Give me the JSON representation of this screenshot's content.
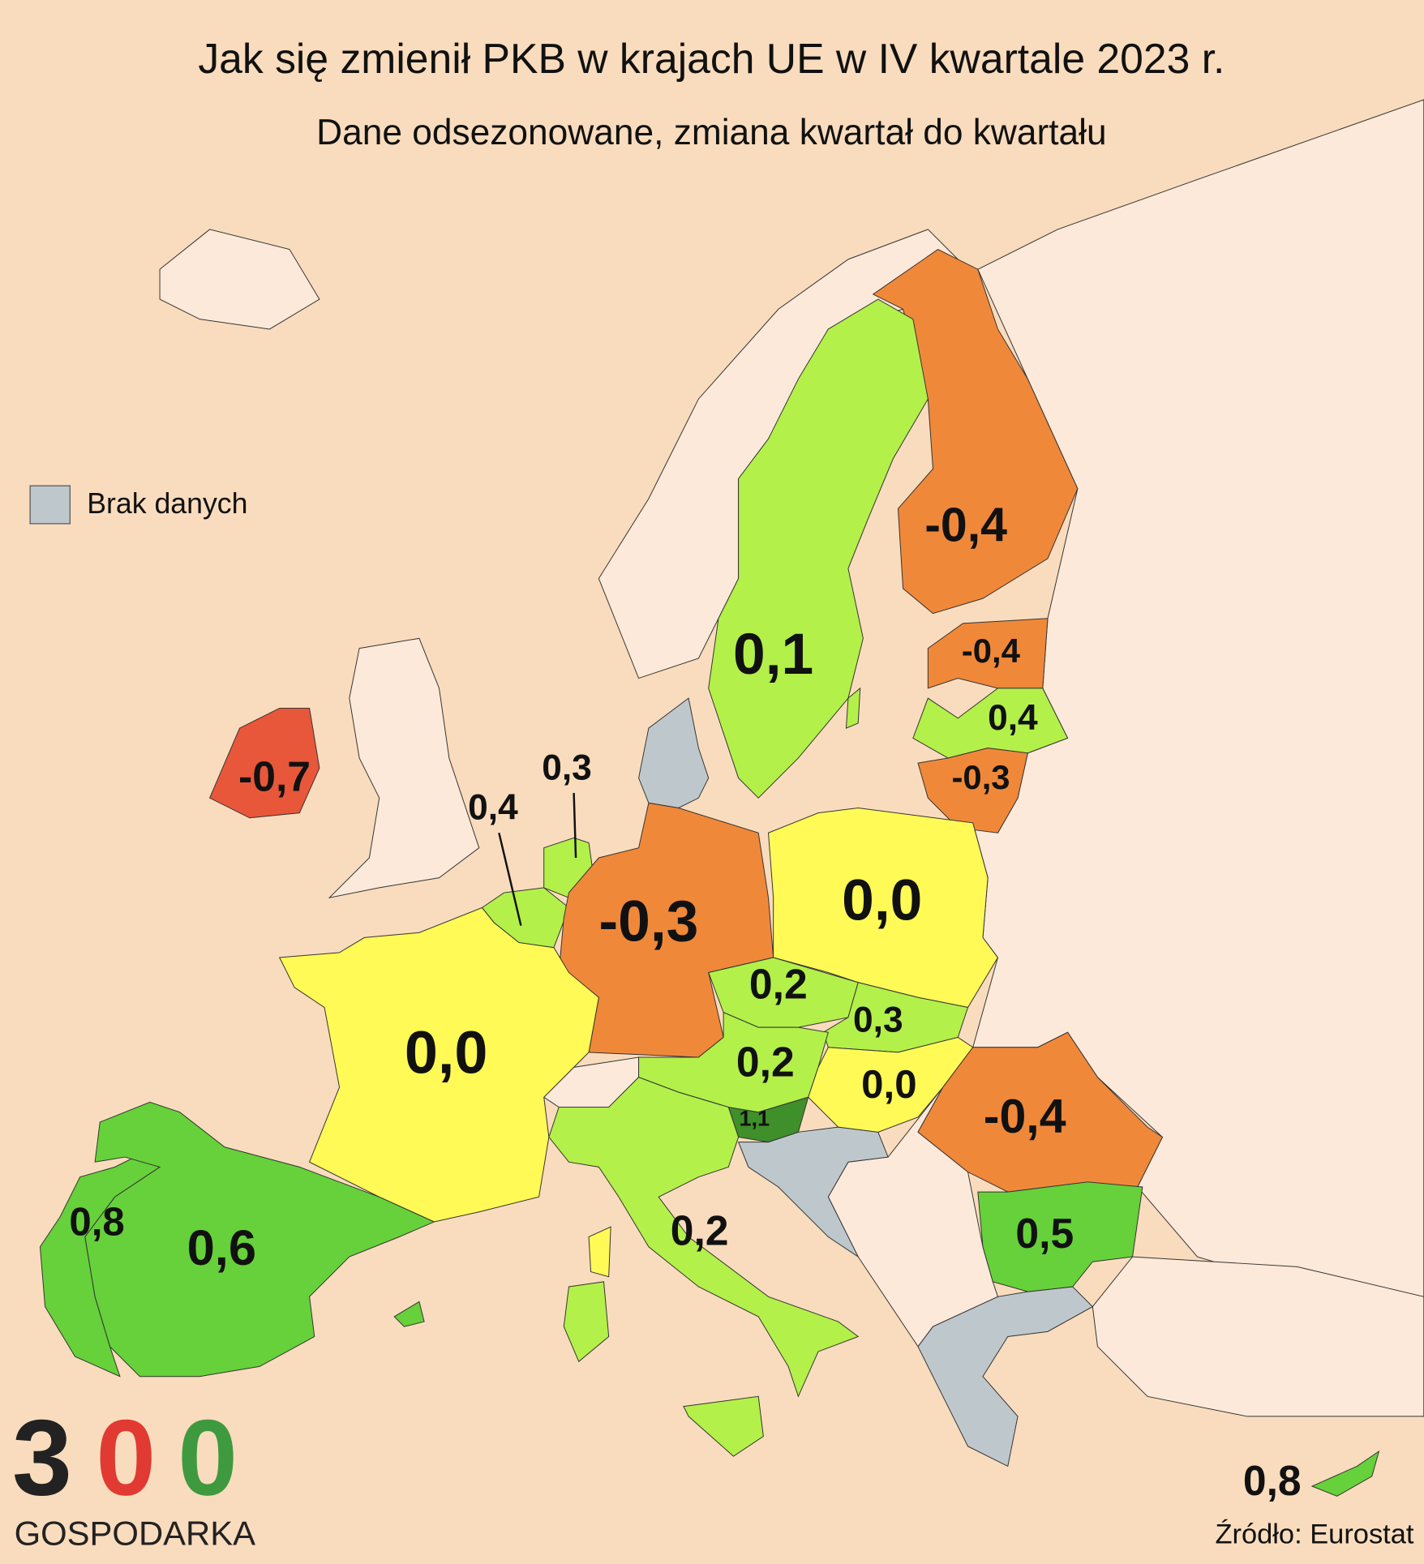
{
  "chart_data": {
    "type": "map",
    "title": "Jak się zmienił PKB w krajach UE w IV kwartale 2023 r.",
    "subtitle": "Dane odsezonowane, zmiana kwartał do kwartału",
    "legend": {
      "label": "Brak danych",
      "color": "#bec8cc"
    },
    "values": [
      -0.4,
      0.1,
      -0.4,
      0.4,
      -0.3,
      -0.7,
      0.3,
      0.4,
      -0.3,
      0.0,
      0.2,
      0.3,
      0.2,
      0.0,
      1.1,
      -0.4,
      0.5,
      0.0,
      0.2,
      0.8,
      0.6,
      0.8
    ],
    "value_labels": [
      "-0,4",
      "0,1",
      "-0,4",
      "0,4",
      "-0,3",
      "-0,7",
      "0,3",
      "0,4",
      "-0,3",
      "0,0",
      "0,2",
      "0,3",
      "0,2",
      "0,0",
      "1,1",
      "-0,4",
      "0,5",
      "0,0",
      "0,2",
      "0,8",
      "0,6",
      "0,8"
    ],
    "colors": [
      "#f0883a",
      "#b3f04a",
      "#f0883a",
      "#b3f04a",
      "#f0883a",
      "#e8573a",
      "#b3f04a",
      "#b3f04a",
      "#f0883a",
      "#fffa55",
      "#b3f04a",
      "#b3f04a",
      "#b3f04a",
      "#fffa55",
      "#3f8f2a",
      "#f0883a",
      "#66d13a",
      "#fffa55",
      "#b3f04a",
      "#66d13a",
      "#66d13a",
      "#66d13a"
    ],
    "source": "Źródło: Eurostat",
    "logo": {
      "digits": [
        "3",
        "0",
        "0"
      ],
      "name": "GOSPODARKA"
    }
  }
}
